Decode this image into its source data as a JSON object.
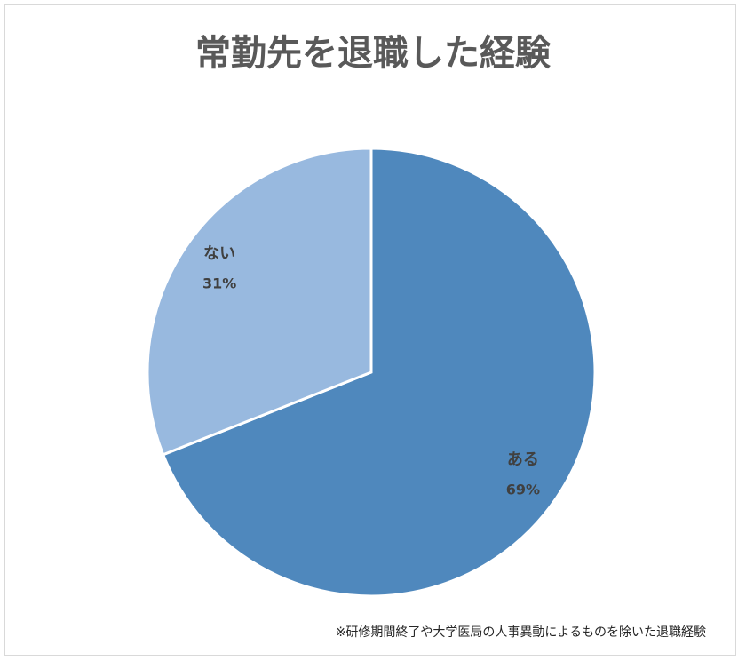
{
  "chart_data": {
    "type": "pie",
    "title": "常勤先を退職した経験",
    "categories": [
      "ある",
      "ない"
    ],
    "values": [
      69,
      31
    ],
    "value_labels": [
      "69%",
      "31%"
    ],
    "colors": [
      "#4f88bd",
      "#98b9df"
    ],
    "footnote": "※研修期間終了や大学医局の人事異動によるものを除いた退職経験"
  }
}
